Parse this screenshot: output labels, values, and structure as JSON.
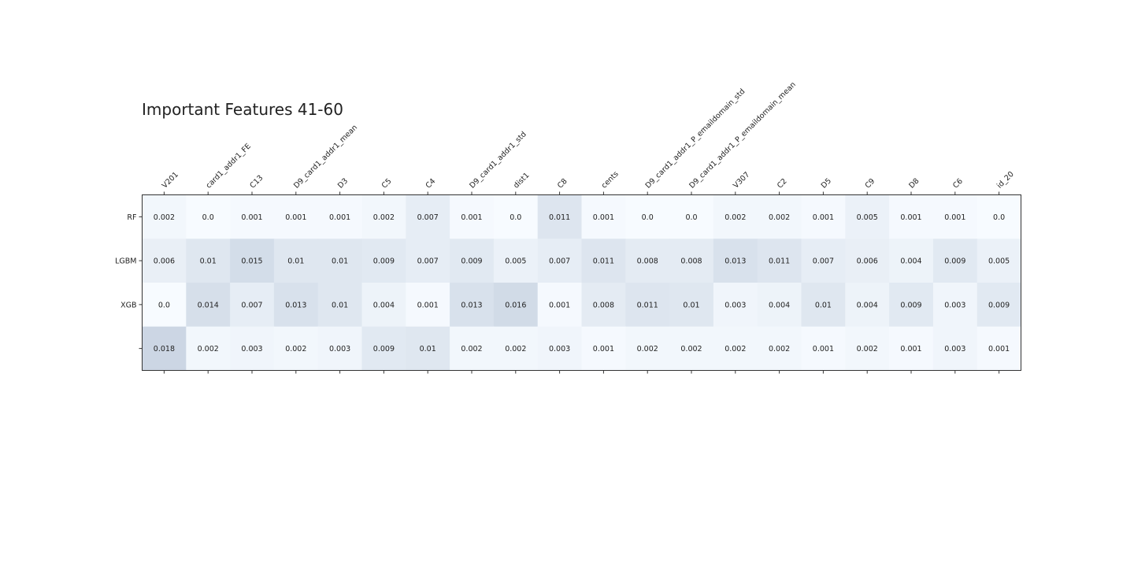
{
  "chart_data": {
    "type": "heatmap",
    "title": "Important Features 41-60",
    "columns": [
      "V201",
      "card1_addr1_FE",
      "C13",
      "D9_card1_addr1_mean",
      "D3",
      "C5",
      "C4",
      "D9_card1_addr1_std",
      "dist1",
      "C8",
      "cents",
      "D9_card1_addr1_P_emaildomain_std",
      "D9_card1_addr1_P_emaildomain_mean",
      "V307",
      "C2",
      "D5",
      "C9",
      "D8",
      "C6",
      "id_20"
    ],
    "rows": [
      "RF",
      "LGBM",
      "XGB",
      ""
    ],
    "values": [
      [
        0.002,
        0.0,
        0.001,
        0.001,
        0.001,
        0.002,
        0.007,
        0.001,
        0.0,
        0.011,
        0.001,
        0.0,
        0.0,
        0.002,
        0.002,
        0.001,
        0.005,
        0.001,
        0.001,
        0.0
      ],
      [
        0.006,
        0.01,
        0.015,
        0.01,
        0.01,
        0.009,
        0.007,
        0.009,
        0.005,
        0.007,
        0.011,
        0.008,
        0.008,
        0.013,
        0.011,
        0.007,
        0.006,
        0.004,
        0.009,
        0.005
      ],
      [
        0.0,
        0.014,
        0.007,
        0.013,
        0.01,
        0.004,
        0.001,
        0.013,
        0.016,
        0.001,
        0.008,
        0.011,
        0.01,
        0.003,
        0.004,
        0.01,
        0.004,
        0.009,
        0.003,
        0.009
      ],
      [
        0.018,
        0.002,
        0.003,
        0.002,
        0.003,
        0.009,
        0.01,
        0.002,
        0.002,
        0.003,
        0.001,
        0.002,
        0.002,
        0.002,
        0.002,
        0.001,
        0.002,
        0.001,
        0.003,
        0.001
      ]
    ],
    "value_labels": [
      [
        "0.002",
        "0.0",
        "0.001",
        "0.001",
        "0.001",
        "0.002",
        "0.007",
        "0.001",
        "0.0",
        "0.011",
        "0.001",
        "0.0",
        "0.0",
        "0.002",
        "0.002",
        "0.001",
        "0.005",
        "0.001",
        "0.001",
        "0.0"
      ],
      [
        "0.006",
        "0.01",
        "0.015",
        "0.01",
        "0.01",
        "0.009",
        "0.007",
        "0.009",
        "0.005",
        "0.007",
        "0.011",
        "0.008",
        "0.008",
        "0.013",
        "0.011",
        "0.007",
        "0.006",
        "0.004",
        "0.009",
        "0.005"
      ],
      [
        "0.0",
        "0.014",
        "0.007",
        "0.013",
        "0.01",
        "0.004",
        "0.001",
        "0.013",
        "0.016",
        "0.001",
        "0.008",
        "0.011",
        "0.01",
        "0.003",
        "0.004",
        "0.01",
        "0.004",
        "0.009",
        "0.003",
        "0.009"
      ],
      [
        "0.018",
        "0.002",
        "0.003",
        "0.002",
        "0.003",
        "0.009",
        "0.01",
        "0.002",
        "0.002",
        "0.003",
        "0.001",
        "0.002",
        "0.002",
        "0.002",
        "0.002",
        "0.001",
        "0.002",
        "0.001",
        "0.003",
        "0.001"
      ]
    ],
    "colormap": "Blues",
    "color_min": "#f7fbff",
    "color_max": "#08306b",
    "value_range": [
      0.0,
      0.1
    ],
    "grid": false
  }
}
